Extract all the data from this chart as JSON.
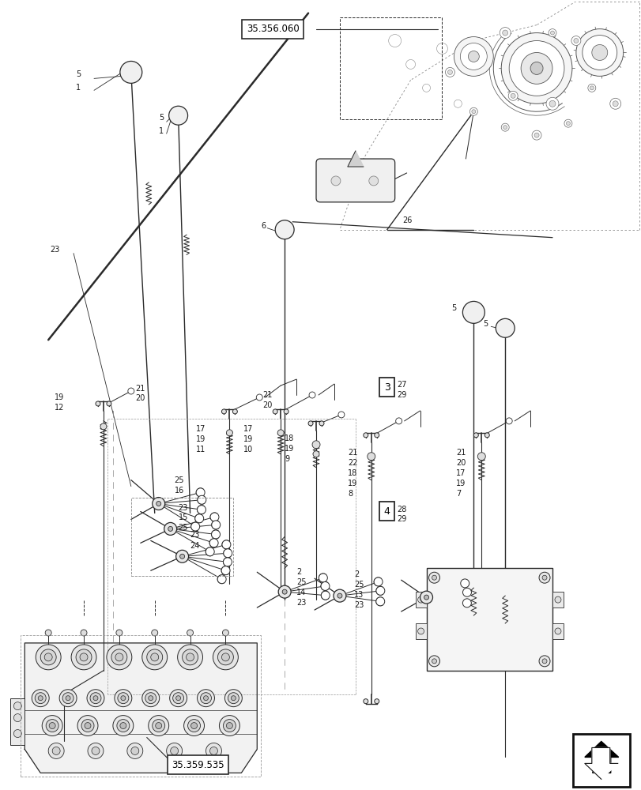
{
  "bg_color": "#ffffff",
  "line_color": "#2a2a2a",
  "title_box1": "35.356.060",
  "title_box2": "35.359.535",
  "fig_w": 8.12,
  "fig_h": 10.0,
  "dpi": 100
}
